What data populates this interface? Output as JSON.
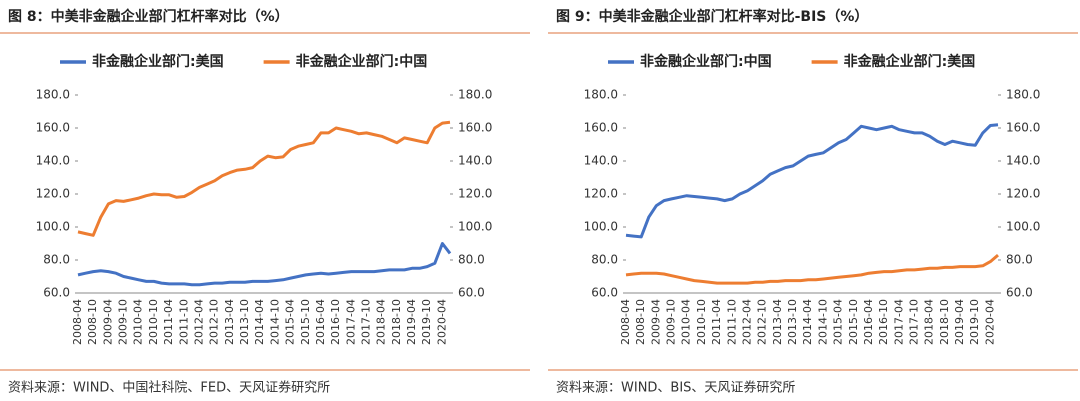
{
  "chart_data": [
    {
      "type": "line",
      "title": "图 8：中美非金融企业部门杠杆率对比（%）",
      "source": "资料来源：WIND、中国社科院、FED、天风证券研究所",
      "categories": [
        "2008-04",
        null,
        "2008-10",
        null,
        "2009-04",
        null,
        "2009-10",
        null,
        "2010-04",
        null,
        "2010-10",
        null,
        "2011-04",
        null,
        "2011-10",
        null,
        "2012-04",
        null,
        "2012-10",
        null,
        "2013-04",
        null,
        "2013-10",
        null,
        "2014-04",
        null,
        "2014-10",
        null,
        "2015-04",
        null,
        "2015-10",
        null,
        "2016-04",
        null,
        "2016-10",
        null,
        "2017-04",
        null,
        "2017-10",
        null,
        "2018-04",
        null,
        "2018-10",
        null,
        "2019-04",
        null,
        "2019-10",
        null,
        "2020-04",
        null
      ],
      "series": [
        {
          "name": "非金融企业部门:美国",
          "color": "#4472c4",
          "axis": "y",
          "values": [
            71,
            72,
            73,
            73.5,
            73,
            72,
            70,
            69,
            68,
            67,
            67,
            66,
            65.5,
            65.5,
            65.5,
            65,
            65,
            65.5,
            66,
            66,
            66.5,
            66.5,
            66.5,
            67,
            67,
            67,
            67.5,
            68,
            69,
            70,
            71,
            71.5,
            72,
            71.5,
            72,
            72.5,
            73,
            73,
            73,
            73,
            73.5,
            74,
            74,
            74,
            75,
            75,
            76,
            78,
            90,
            84
          ]
        },
        {
          "name": "非金融企业部门:中国",
          "color": "#ed7d31",
          "axis": "y2",
          "values": [
            97,
            96,
            95,
            106,
            114,
            116,
            115.5,
            116.5,
            117.5,
            119,
            120,
            119.5,
            119.5,
            118,
            118.5,
            121,
            124,
            126,
            128,
            131,
            133,
            134.5,
            135,
            136,
            140,
            143,
            142,
            142.5,
            147,
            149,
            150,
            151,
            157,
            157,
            160,
            159,
            158,
            156.5,
            157,
            156,
            155,
            153,
            151,
            154,
            153,
            152,
            151,
            160,
            163,
            163.5
          ]
        }
      ],
      "ylim": [
        60,
        180
      ],
      "yticks": [
        {
          "value": 60,
          "label": "60.0"
        },
        {
          "value": 80,
          "label": "80.0"
        },
        {
          "value": 100,
          "label": "100.0"
        },
        {
          "value": 120,
          "label": "120.0"
        },
        {
          "value": 140,
          "label": "140.0"
        },
        {
          "value": 160,
          "label": "160.0"
        },
        {
          "value": 180,
          "label": "180.0"
        }
      ],
      "y2lim": [
        60,
        180
      ],
      "y2ticks": [
        {
          "value": 60,
          "label": "60.0"
        },
        {
          "value": 80,
          "label": "80.0"
        },
        {
          "value": 100,
          "label": "100.0"
        },
        {
          "value": 120,
          "label": "120.0"
        },
        {
          "value": 140,
          "label": "140.0"
        },
        {
          "value": 160,
          "label": "160.0"
        },
        {
          "value": 180,
          "label": "180.0"
        }
      ],
      "legend": "top"
    },
    {
      "type": "line",
      "title": "图 9：中美非金融企业部门杠杆率对比-BIS（%）",
      "source": "资料来源：WIND、BIS、天风证券研究所",
      "categories": [
        "2008-04",
        null,
        "2008-10",
        null,
        "2009-04",
        null,
        "2009-10",
        null,
        "2010-04",
        null,
        "2010-10",
        null,
        "2011-04",
        null,
        "2011-10",
        null,
        "2012-04",
        null,
        "2012-10",
        null,
        "2013-04",
        null,
        "2013-10",
        null,
        "2014-04",
        null,
        "2014-10",
        null,
        "2015-04",
        null,
        "2015-10",
        null,
        "2016-04",
        null,
        "2016-10",
        null,
        "2017-04",
        null,
        "2017-10",
        null,
        "2018-04",
        null,
        "2018-10",
        null,
        "2019-04",
        null,
        "2019-10",
        null,
        "2020-04",
        null
      ],
      "series": [
        {
          "name": "非金融企业部门:中国",
          "color": "#4472c4",
          "axis": "y",
          "values": [
            95,
            94.5,
            94,
            106,
            113,
            116,
            117,
            118,
            119,
            118.5,
            118,
            117.5,
            117,
            116,
            117,
            120,
            122,
            125,
            128,
            132,
            134,
            136,
            137,
            140,
            143,
            144,
            145,
            148,
            151,
            153,
            157,
            161,
            160,
            159,
            160,
            161,
            159,
            158,
            157,
            157,
            155,
            152,
            150,
            152,
            151,
            150,
            149.5,
            157,
            161.5,
            162
          ]
        },
        {
          "name": "非金融企业部门:美国",
          "color": "#ed7d31",
          "axis": "y2",
          "values": [
            71,
            71.5,
            72,
            72,
            72,
            71.5,
            70.5,
            69.5,
            68.5,
            67.5,
            67,
            66.5,
            66,
            66,
            66,
            66,
            66,
            66.5,
            66.5,
            67,
            67,
            67.5,
            67.5,
            67.5,
            68,
            68,
            68.5,
            69,
            69.5,
            70,
            70.5,
            71,
            72,
            72.5,
            73,
            73,
            73.5,
            74,
            74,
            74.5,
            75,
            75,
            75.5,
            75.5,
            76,
            76,
            76,
            76.5,
            79,
            83
          ]
        }
      ],
      "ylim": [
        60,
        180
      ],
      "yticks": [
        {
          "value": 60,
          "label": "60.0"
        },
        {
          "value": 80,
          "label": "80.0"
        },
        {
          "value": 100,
          "label": "100.0"
        },
        {
          "value": 120,
          "label": "120.0"
        },
        {
          "value": 140,
          "label": "140.0"
        },
        {
          "value": 160,
          "label": "160.0"
        },
        {
          "value": 180,
          "label": "180.0"
        }
      ],
      "y2lim": [
        60,
        180
      ],
      "y2ticks": [
        {
          "value": 60,
          "label": "60.0"
        },
        {
          "value": 80,
          "label": "80.0"
        },
        {
          "value": 100,
          "label": "100.0"
        },
        {
          "value": 120,
          "label": "120.0"
        },
        {
          "value": 140,
          "label": "140.0"
        },
        {
          "value": 160,
          "label": "160.0"
        },
        {
          "value": 180,
          "label": "180.0"
        }
      ],
      "legend": "top"
    }
  ]
}
